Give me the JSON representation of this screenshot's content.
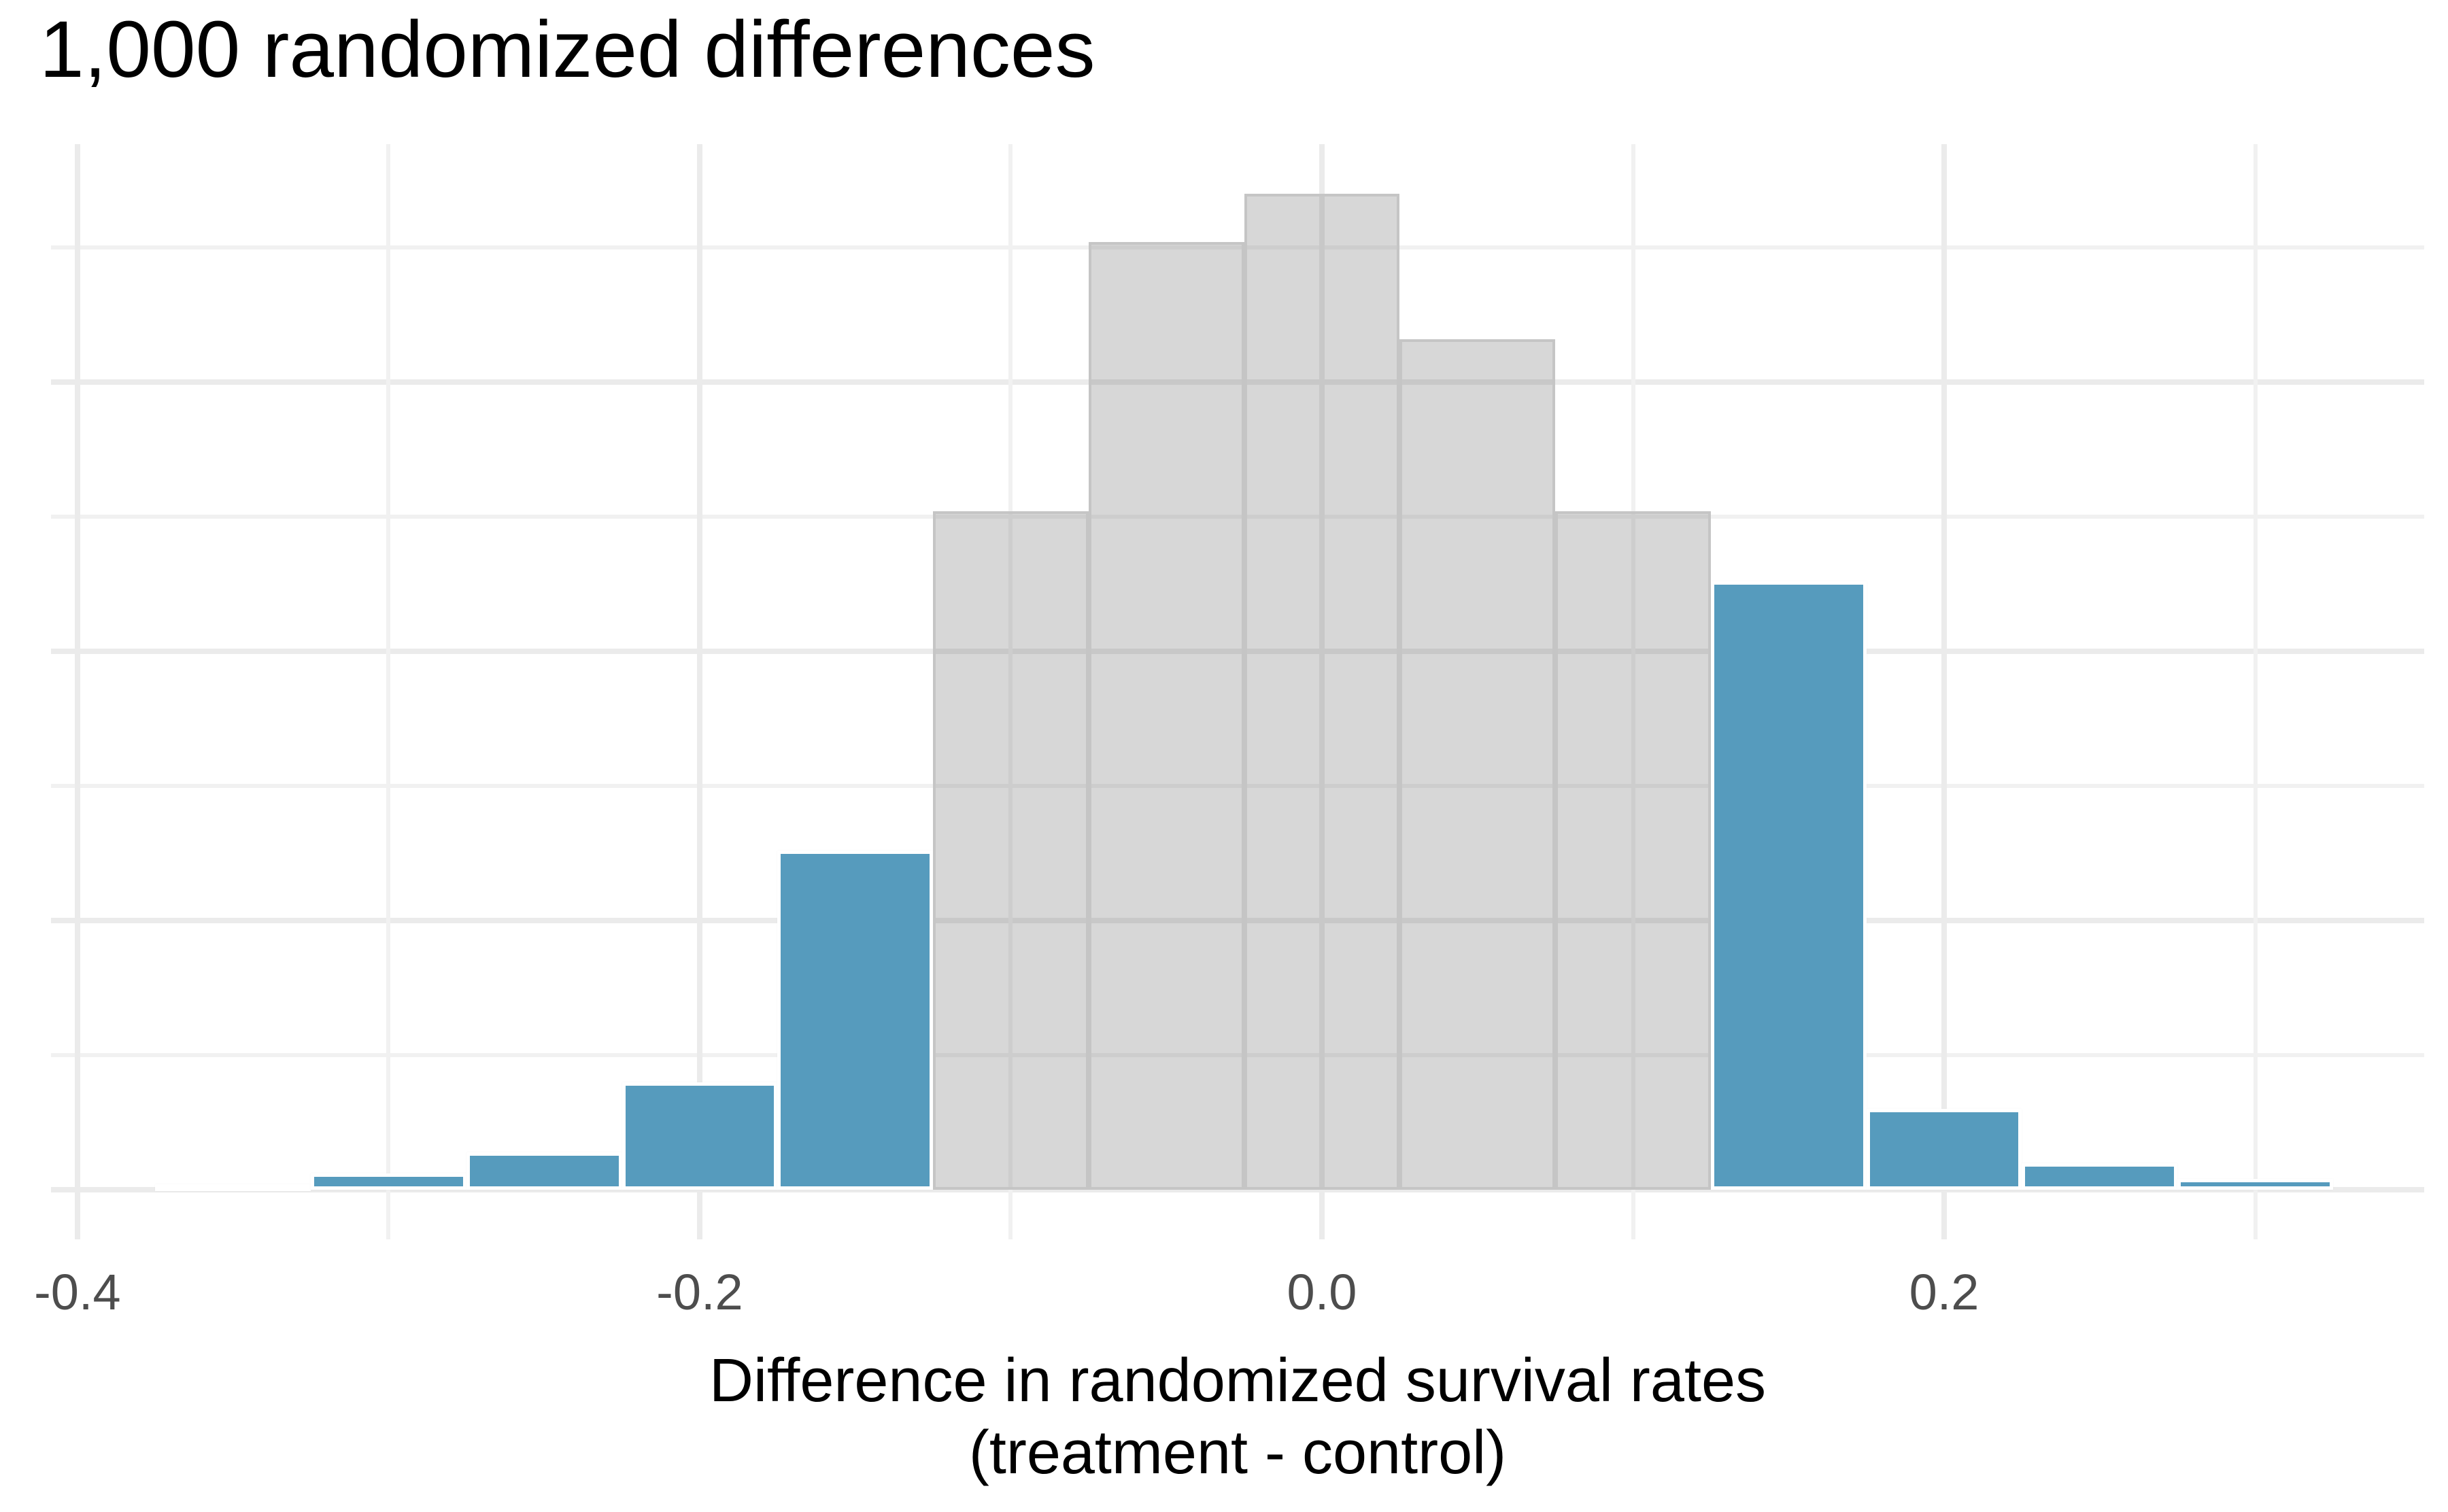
{
  "title": "1,000 randomized differences",
  "x_axis": {
    "label_line1": "Difference in randomized survival rates",
    "label_line2": "(treatment - control)",
    "tick_labels": [
      "-0.4",
      "-0.2",
      "0.0",
      "0.2"
    ]
  },
  "chart_data": {
    "type": "bar",
    "subtype": "histogram",
    "title": "1,000 randomized differences",
    "xlabel": "Difference in randomized survival rates (treatment - control)",
    "ylabel": "",
    "n_total": 1000,
    "bin_width": 0.05,
    "bin_centers": [
      -0.35,
      -0.3,
      -0.25,
      -0.2,
      -0.15,
      -0.1,
      -0.05,
      0.0,
      0.05,
      0.1,
      0.15,
      0.2,
      0.25,
      0.3
    ],
    "values": [
      1,
      3,
      7,
      20,
      63,
      126,
      176,
      185,
      158,
      126,
      113,
      15,
      5,
      2
    ],
    "bar_groups": [
      "tail",
      "tail",
      "tail",
      "tail",
      "tail",
      "center",
      "center",
      "center",
      "center",
      "center",
      "tail",
      "tail",
      "tail",
      "tail"
    ],
    "group_meaning": {
      "tail": "differences as or more extreme (blue)",
      "center": "typical randomized differences (gray)"
    },
    "colors": {
      "tail_blue": "#569BBD",
      "center_gray_fill": "#D6D6D6",
      "center_gray_border": "#C5C5C5",
      "blue_bar_stroke": "#FFFFFF",
      "gridline": "#EBEBEB",
      "tick_text": "#4D4D4D",
      "title_text": "#000000"
    },
    "x_ticks": [
      -0.4,
      -0.2,
      0.0,
      0.2
    ],
    "x_tick_labels": [
      "-0.4",
      "-0.2",
      "0.0",
      "0.2"
    ],
    "x_minor_grid": [
      -0.3,
      -0.1,
      0.1,
      0.3
    ],
    "y_grid_major": [
      0,
      50,
      100,
      150
    ],
    "y_grid_minor": [
      25,
      75,
      125,
      175
    ],
    "xlim": [
      -0.4085,
      0.3543
    ],
    "ylim": [
      -9.2,
      194.2
    ],
    "grid": "on",
    "legend": "none",
    "y_axis_labels_shown": false
  }
}
